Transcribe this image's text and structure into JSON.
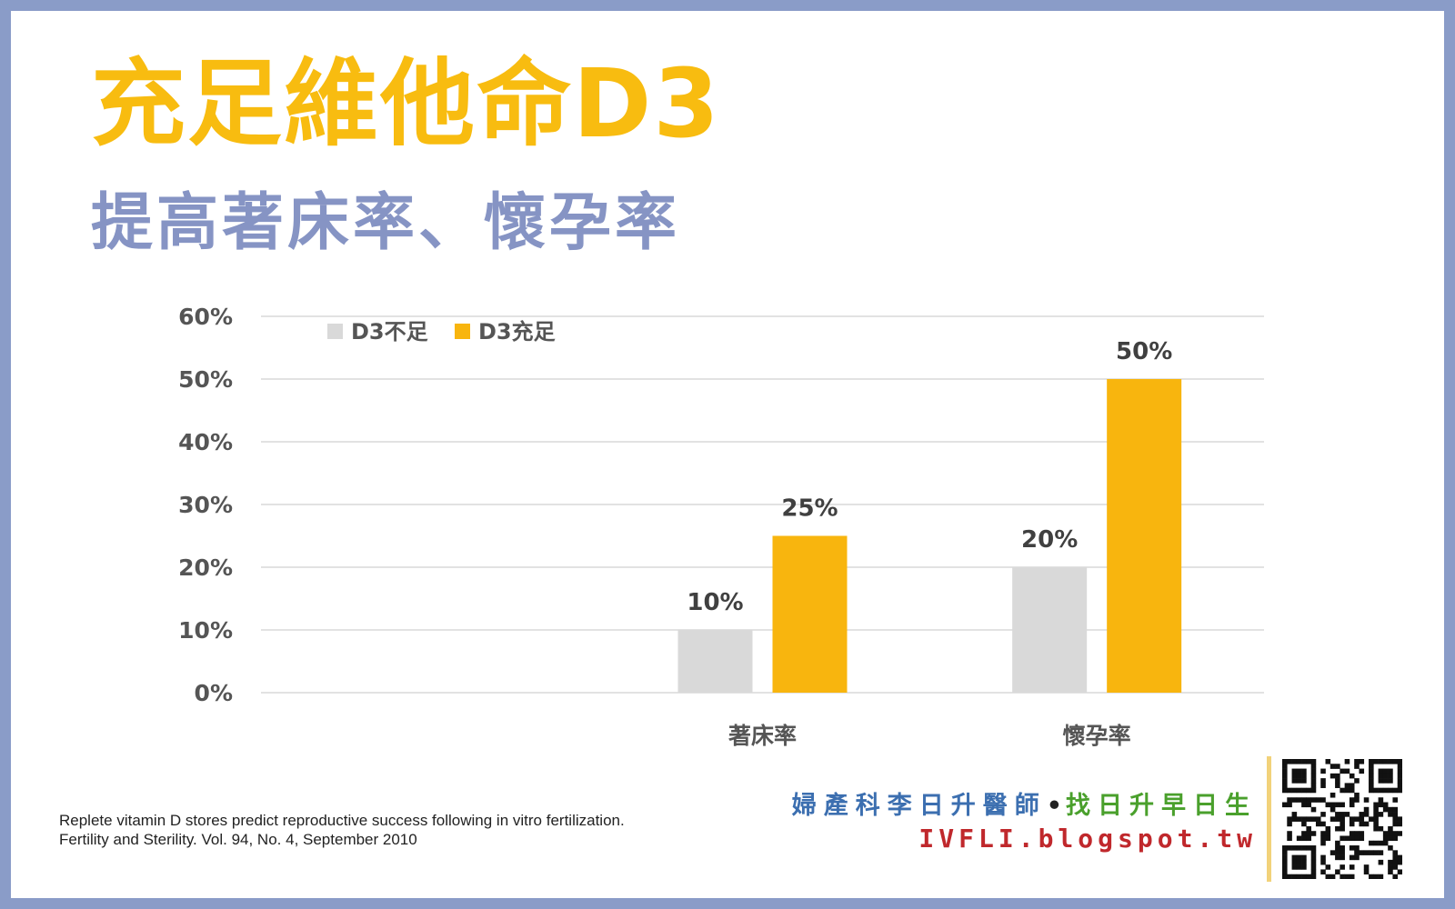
{
  "header": {
    "title": "充足維他命D3",
    "subtitle": "提高著床率、懷孕率"
  },
  "chart_data": {
    "type": "bar",
    "categories": [
      "",
      "著床率",
      "懷孕率"
    ],
    "series": [
      {
        "name": "D3不足",
        "values": [
          null,
          10,
          20
        ],
        "color": "#d9d9d9"
      },
      {
        "name": "D3充足",
        "values": [
          null,
          25,
          50
        ],
        "color": "#f8b50e"
      }
    ],
    "data_labels": [
      [
        "",
        "10%",
        "20%"
      ],
      [
        "",
        "25%",
        "50%"
      ]
    ],
    "yticks": [
      "0%",
      "10%",
      "20%",
      "30%",
      "40%",
      "50%",
      "60%"
    ],
    "ylim": [
      0,
      60
    ],
    "grid": true,
    "legend": "top-left"
  },
  "citation": {
    "line1": "Replete vitamin D stores predict reproductive success following in vitro fertilization.",
    "line2": "Fertility and Sterility. Vol. 94, No. 4, September 2010"
  },
  "brand": {
    "doctor": "婦產科李日升醫師",
    "separator": "•",
    "slogan": "找日升早日生",
    "url": "IVFLI.blogspot.tw",
    "qr_icon": "qr-code-icon"
  },
  "colors": {
    "title": "#f8bc10",
    "subtitle": "#8694c4",
    "frame": "#8a9cc8",
    "bar_low": "#d9d9d9",
    "bar_high": "#f8b50e"
  }
}
